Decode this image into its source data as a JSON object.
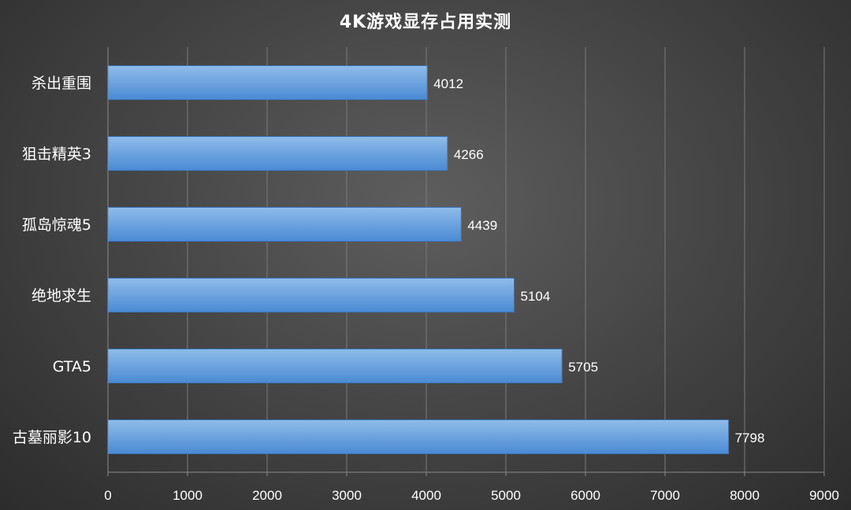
{
  "chart_data": {
    "type": "bar",
    "orientation": "horizontal",
    "title": "4K游戏显存占用实测",
    "xlabel": "",
    "ylabel": "",
    "categories": [
      "杀出重围",
      "狙击精英3",
      "孤岛惊魂5",
      "绝地求生",
      "GTA5",
      "古墓丽影10"
    ],
    "values": [
      4012,
      4266,
      4439,
      5104,
      5705,
      7798
    ],
    "xlim": [
      0,
      9000
    ],
    "xticks": [
      "0",
      "1000",
      "2000",
      "3000",
      "4000",
      "5000",
      "6000",
      "7000",
      "8000",
      "9000"
    ],
    "grid": true,
    "legend": "none",
    "data_labels": true,
    "colors": {
      "bar_top": "#8fbcea",
      "bar_bottom": "#4a8ad4",
      "bar_stroke": "#3a78c0",
      "grid": "#7a7a7a",
      "axis": "#8a8a8a",
      "text": "#ffffff"
    }
  }
}
